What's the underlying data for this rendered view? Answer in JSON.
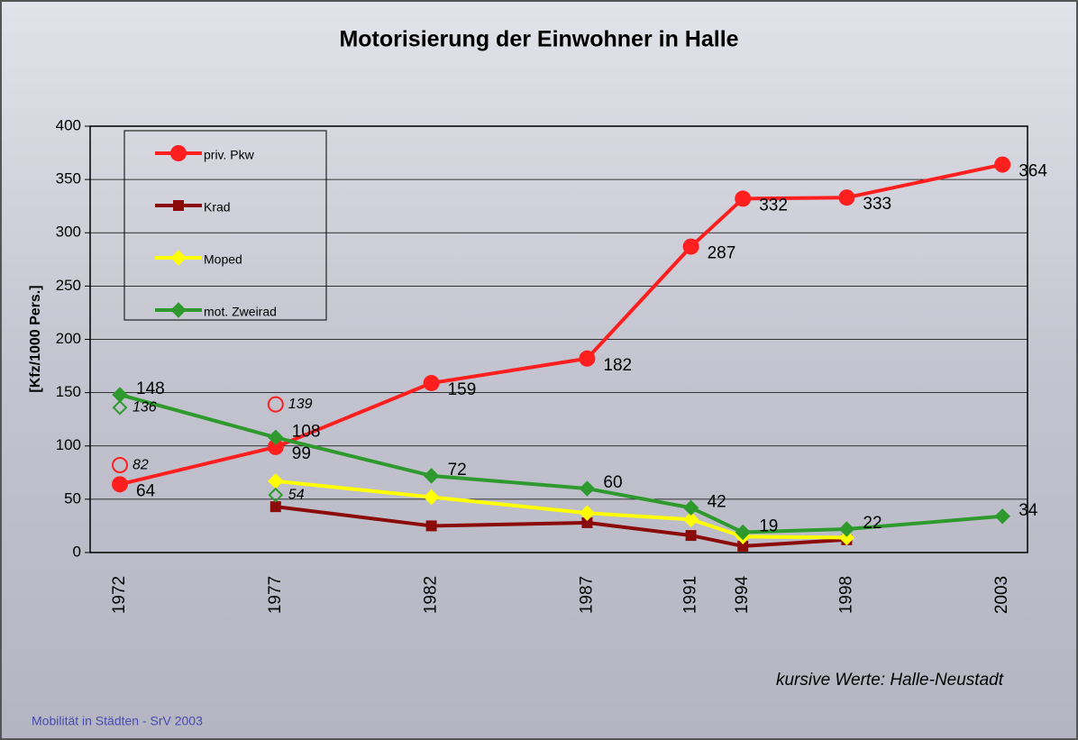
{
  "chart_data": {
    "type": "line",
    "title": "Motorisierung der Einwohner in Halle",
    "y_label": "[Kfz/1000 Pers.]",
    "annotation": "kursive Werte:  Halle-Neustadt",
    "footer": "Mobilität in Städten - SrV 2003",
    "categories": [
      "1972",
      null,
      null,
      "1977",
      null,
      null,
      "1982",
      null,
      null,
      "1987",
      null,
      "1991",
      "1994",
      null,
      "1998",
      null,
      null,
      "2003"
    ],
    "ylim": [
      0,
      400
    ],
    "yticks": [
      0,
      50,
      100,
      150,
      200,
      250,
      300,
      350,
      400
    ],
    "grid": true,
    "series": [
      {
        "name": "priv. Pkw",
        "color": "#ff1f1f",
        "marker": "circle",
        "labels": true,
        "values": [
          64,
          null,
          null,
          99,
          null,
          null,
          159,
          null,
          null,
          182,
          null,
          287,
          332,
          null,
          333,
          null,
          null,
          364
        ]
      },
      {
        "name": "Krad",
        "color": "#8b0a0a",
        "marker": "square",
        "labels": false,
        "values": [
          null,
          null,
          null,
          43,
          null,
          null,
          25,
          null,
          null,
          28,
          null,
          16,
          6,
          null,
          12,
          null,
          null,
          null
        ]
      },
      {
        "name": "Moped",
        "color": "#ffff00",
        "marker": "diamond",
        "labels": false,
        "values": [
          null,
          null,
          null,
          67,
          null,
          null,
          52,
          null,
          null,
          37,
          null,
          31,
          15,
          null,
          14,
          null,
          null,
          null
        ]
      },
      {
        "name": "mot. Zweirad",
        "color": "#2e9a2e",
        "marker": "diamond",
        "labels": true,
        "values": [
          148,
          null,
          null,
          108,
          null,
          null,
          72,
          null,
          null,
          60,
          null,
          42,
          19,
          null,
          22,
          null,
          null,
          34
        ]
      },
      {
        "color": "#ff1f1f",
        "marker": "open-circle",
        "labels": true,
        "italic": true,
        "values": [
          82,
          null,
          null,
          139,
          null,
          null,
          null,
          null,
          null,
          null,
          null,
          null,
          null,
          null,
          null,
          null,
          null,
          null
        ]
      },
      {
        "color": "#2e9a2e",
        "marker": "open-diamond",
        "labels": true,
        "italic": true,
        "values": [
          136,
          null,
          null,
          54,
          null,
          null,
          null,
          null,
          null,
          null,
          null,
          null,
          null,
          null,
          null,
          null,
          null,
          null
        ]
      }
    ]
  }
}
